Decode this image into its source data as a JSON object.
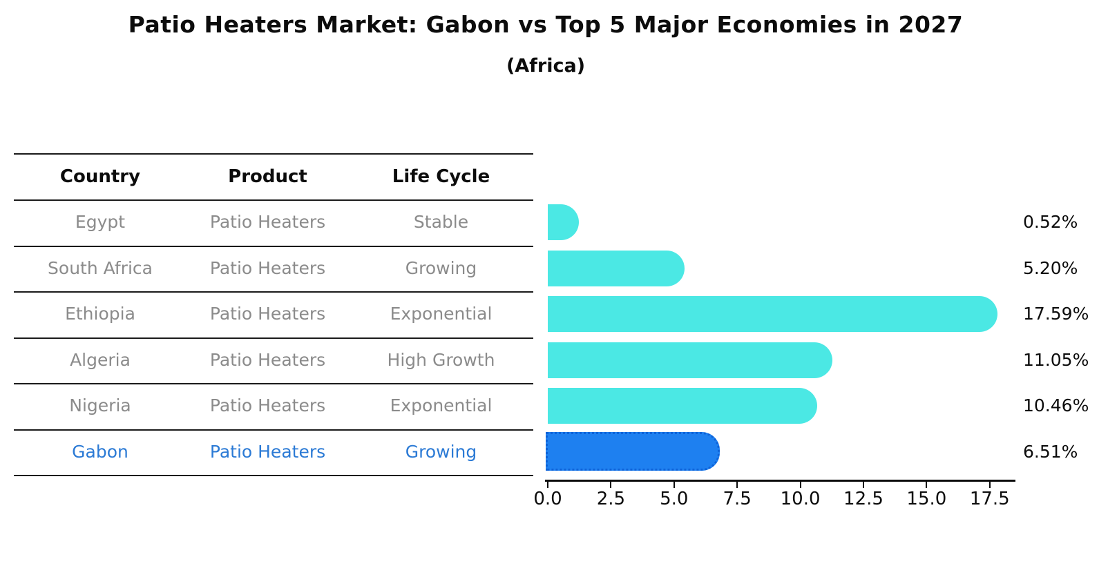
{
  "title": "Patio Heaters Market: Gabon vs Top 5 Major Economies in 2027",
  "subtitle": "(Africa)",
  "table": {
    "headers": [
      "Country",
      "Product",
      "Life Cycle"
    ],
    "rows": [
      {
        "country": "Egypt",
        "product": "Patio Heaters",
        "life_cycle": "Stable",
        "highlight": false
      },
      {
        "country": "South Africa",
        "product": "Patio Heaters",
        "life_cycle": "Growing",
        "highlight": false
      },
      {
        "country": "Ethiopia",
        "product": "Patio Heaters",
        "life_cycle": "Exponential",
        "highlight": false
      },
      {
        "country": "Algeria",
        "product": "Patio Heaters",
        "life_cycle": "High Growth",
        "highlight": false
      },
      {
        "country": "Nigeria",
        "product": "Patio Heaters",
        "life_cycle": "Exponential",
        "highlight": false
      },
      {
        "country": "Gabon",
        "product": "Patio Heaters",
        "life_cycle": "Growing",
        "highlight": true
      }
    ]
  },
  "chart_data": {
    "type": "bar",
    "orientation": "horizontal",
    "title": "Patio Heaters Market: Gabon vs Top 5 Major Economies in 2027",
    "subtitle": "(Africa)",
    "categories": [
      "Egypt",
      "South Africa",
      "Ethiopia",
      "Algeria",
      "Nigeria",
      "Gabon"
    ],
    "values": [
      0.52,
      5.2,
      17.59,
      11.05,
      10.46,
      6.51
    ],
    "value_labels": [
      "0.52%",
      "5.20%",
      "17.59%",
      "11.05%",
      "10.46%",
      "6.51%"
    ],
    "x_ticks": [
      "0.0",
      "2.5",
      "5.0",
      "7.5",
      "10.0",
      "12.5",
      "15.0",
      "17.5"
    ],
    "x_tick_values": [
      0,
      2.5,
      5,
      7.5,
      10,
      12.5,
      15,
      17.5
    ],
    "xlim": [
      0,
      18.6
    ],
    "grid": false,
    "legend": "none",
    "bar_color": "#4be8e4",
    "highlight_color": "#1e80f0",
    "highlight_index": 5,
    "unit": "%"
  },
  "colors": {
    "background": "#ffffff",
    "table_line": "#1a1a1a",
    "header_text": "#0c0c0c",
    "row_text": "#8b8b8b",
    "highlight_text": "#2b7ad5",
    "bar": "#4be8e4",
    "highlight_bar": "#1e80f0"
  }
}
